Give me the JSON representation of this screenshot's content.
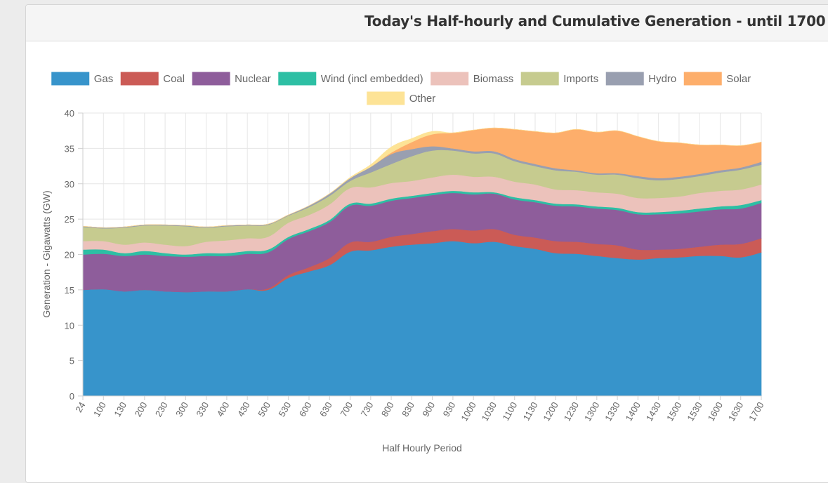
{
  "panel": {
    "title": "Today's Half-hourly and Cumulative Generation - until 1700"
  },
  "chart_data": {
    "type": "area",
    "stacked": true,
    "xlabel": "Half Hourly Period",
    "ylabel": "Generation - Gigawatts (GW)",
    "ylim": [
      0,
      40
    ],
    "yticks": [
      0,
      5,
      10,
      15,
      20,
      25,
      30,
      35,
      40
    ],
    "grid": true,
    "legend_position": "top",
    "categories": [
      "24",
      "100",
      "130",
      "200",
      "230",
      "300",
      "330",
      "400",
      "430",
      "500",
      "530",
      "600",
      "630",
      "700",
      "730",
      "800",
      "830",
      "900",
      "930",
      "1000",
      "1030",
      "1100",
      "1130",
      "1200",
      "1230",
      "1300",
      "1330",
      "1400",
      "1430",
      "1500",
      "1530",
      "1600",
      "1630",
      "1700"
    ],
    "series": [
      {
        "name": "Gas",
        "color": "#3794cb",
        "values": [
          15.0,
          15.1,
          14.8,
          15.0,
          14.8,
          14.7,
          14.8,
          14.8,
          15.1,
          15.0,
          16.7,
          17.6,
          18.5,
          20.4,
          20.6,
          21.1,
          21.4,
          21.6,
          21.9,
          21.6,
          21.8,
          21.2,
          20.8,
          20.2,
          20.1,
          19.8,
          19.5,
          19.3,
          19.5,
          19.6,
          19.8,
          19.8,
          19.6,
          20.3
        ]
      },
      {
        "name": "Coal",
        "color": "#cb5b56",
        "values": [
          0,
          0,
          0,
          0,
          0,
          0,
          0,
          0,
          0,
          0.2,
          0.4,
          0.6,
          1.0,
          1.3,
          1.2,
          1.4,
          1.5,
          1.7,
          1.7,
          1.8,
          1.8,
          1.6,
          1.6,
          1.7,
          1.7,
          1.7,
          1.8,
          1.4,
          1.2,
          1.2,
          1.3,
          1.6,
          1.9,
          2.0
        ]
      },
      {
        "name": "Nuclear",
        "color": "#8e5d9b",
        "values": [
          5.0,
          5.0,
          5.0,
          5.0,
          5.0,
          5.0,
          5.0,
          5.0,
          5.0,
          5.1,
          5.1,
          5.1,
          5.1,
          5.2,
          5.1,
          5.1,
          5.1,
          5.1,
          5.1,
          5.1,
          5.0,
          5.0,
          5.0,
          5.0,
          5.0,
          5.0,
          5.0,
          5.0,
          5.0,
          5.0,
          5.0,
          5.0,
          5.0,
          5.0
        ]
      },
      {
        "name": "Wind (incl embedded)",
        "color": "#2dbfa4",
        "values": [
          0.7,
          0.6,
          0.4,
          0.5,
          0.4,
          0.3,
          0.4,
          0.4,
          0.4,
          0.4,
          0.3,
          0.3,
          0.3,
          0.3,
          0.3,
          0.3,
          0.3,
          0.3,
          0.3,
          0.3,
          0.2,
          0.3,
          0.3,
          0.3,
          0.3,
          0.3,
          0.3,
          0.3,
          0.3,
          0.4,
          0.4,
          0.4,
          0.5,
          0.4
        ]
      },
      {
        "name": "Biomass",
        "color": "#ecc2bb",
        "values": [
          1.2,
          1.2,
          1.2,
          1.2,
          1.2,
          1.2,
          1.6,
          1.8,
          1.8,
          1.8,
          2.0,
          2.0,
          2.2,
          2.2,
          2.3,
          2.2,
          2.1,
          2.2,
          2.3,
          2.2,
          2.2,
          2.2,
          2.2,
          2.0,
          2.0,
          2.0,
          2.0,
          2.0,
          2.0,
          2.0,
          2.2,
          2.2,
          2.2,
          2.2
        ]
      },
      {
        "name": "Imports",
        "color": "#c6cb8f",
        "values": [
          2.0,
          1.8,
          2.4,
          2.4,
          2.7,
          2.8,
          2.0,
          2.0,
          1.8,
          1.7,
          1.0,
          1.1,
          1.2,
          1.0,
          2.1,
          2.7,
          3.5,
          3.8,
          3.4,
          3.3,
          3.3,
          2.9,
          2.6,
          2.7,
          2.6,
          2.5,
          2.7,
          2.8,
          2.5,
          2.5,
          2.4,
          2.6,
          2.8,
          2.8
        ]
      },
      {
        "name": "Hydro",
        "color": "#999fb0",
        "values": [
          0.1,
          0.1,
          0.1,
          0.1,
          0.1,
          0.1,
          0.1,
          0.1,
          0.1,
          0.1,
          0.1,
          0.2,
          0.3,
          0.4,
          0.8,
          1.4,
          1.0,
          0.6,
          0.3,
          0.3,
          0.3,
          0.3,
          0.3,
          0.3,
          0.2,
          0.2,
          0.2,
          0.3,
          0.3,
          0.3,
          0.3,
          0.3,
          0.3,
          0.4
        ]
      },
      {
        "name": "Solar",
        "color": "#fdae6b",
        "values": [
          0,
          0,
          0,
          0,
          0,
          0,
          0,
          0,
          0,
          0,
          0,
          0,
          0,
          0,
          0,
          0.2,
          1.0,
          1.7,
          2.2,
          3.0,
          3.3,
          4.2,
          4.6,
          5.0,
          5.8,
          5.8,
          6.0,
          5.6,
          5.2,
          4.8,
          4.1,
          3.6,
          3.1,
          2.8
        ]
      },
      {
        "name": "Other",
        "color": "#fde396",
        "values": [
          0,
          0,
          0,
          0,
          0,
          0,
          0,
          0,
          0,
          0,
          0,
          0,
          0,
          0.1,
          0.3,
          0.8,
          0.5,
          0.4,
          0,
          0,
          0,
          0,
          0,
          0,
          0,
          0,
          0,
          0,
          0,
          0,
          0,
          0,
          0,
          0
        ]
      }
    ]
  }
}
